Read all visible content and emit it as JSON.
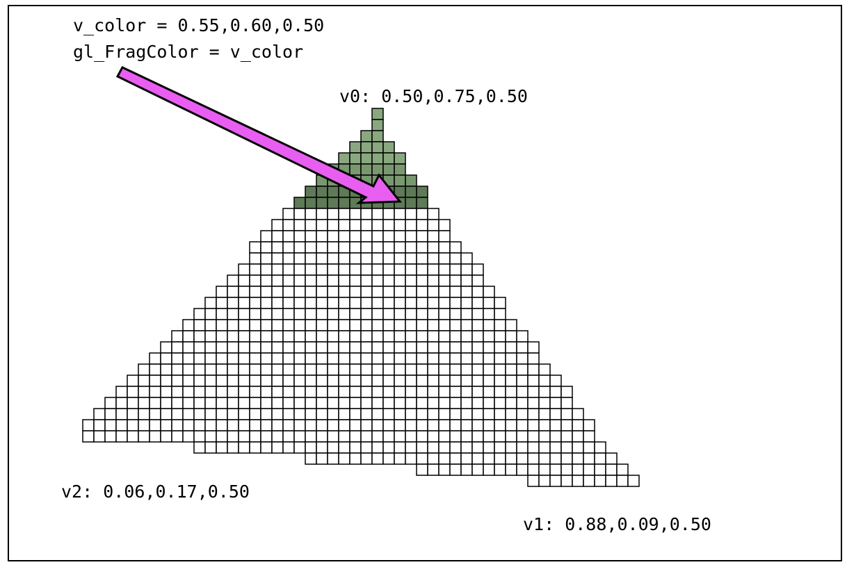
{
  "code": {
    "line1": "v_color = 0.55,0.60,0.50",
    "line2": "gl_FragColor = v_color"
  },
  "vertices": {
    "v0": "v0: 0.50,0.75,0.50",
    "v1": "v1: 0.88,0.09,0.50",
    "v2": "v2: 0.06,0.17,0.50"
  },
  "colors": {
    "cell_stroke": "#000000",
    "cell_fill": "#ffffff",
    "shaded_fill_top": "#8aa880",
    "shaded_fill_bottom": "#5e7a57",
    "arrow_fill": "#e85ef0",
    "arrow_stroke": "#000000"
  },
  "raster": {
    "shaded_rows": 9,
    "rows": [
      [
        26,
        26
      ],
      [
        26,
        26
      ],
      [
        25,
        26
      ],
      [
        24,
        27
      ],
      [
        23,
        28
      ],
      [
        22,
        28
      ],
      [
        21,
        29
      ],
      [
        20,
        30
      ],
      [
        19,
        30
      ],
      [
        18,
        31
      ],
      [
        17,
        32
      ],
      [
        16,
        32
      ],
      [
        15,
        33
      ],
      [
        15,
        34
      ],
      [
        14,
        35
      ],
      [
        13,
        35
      ],
      [
        12,
        36
      ],
      [
        11,
        37
      ],
      [
        10,
        37
      ],
      [
        9,
        38
      ],
      [
        8,
        39
      ],
      [
        7,
        40
      ],
      [
        6,
        40
      ],
      [
        5,
        41
      ],
      [
        4,
        42
      ],
      [
        3,
        43
      ],
      [
        2,
        43
      ],
      [
        1,
        44
      ],
      [
        0,
        45
      ],
      [
        0,
        45
      ],
      [
        10,
        46
      ],
      [
        20,
        47
      ],
      [
        30,
        48
      ],
      [
        40,
        49
      ]
    ]
  }
}
